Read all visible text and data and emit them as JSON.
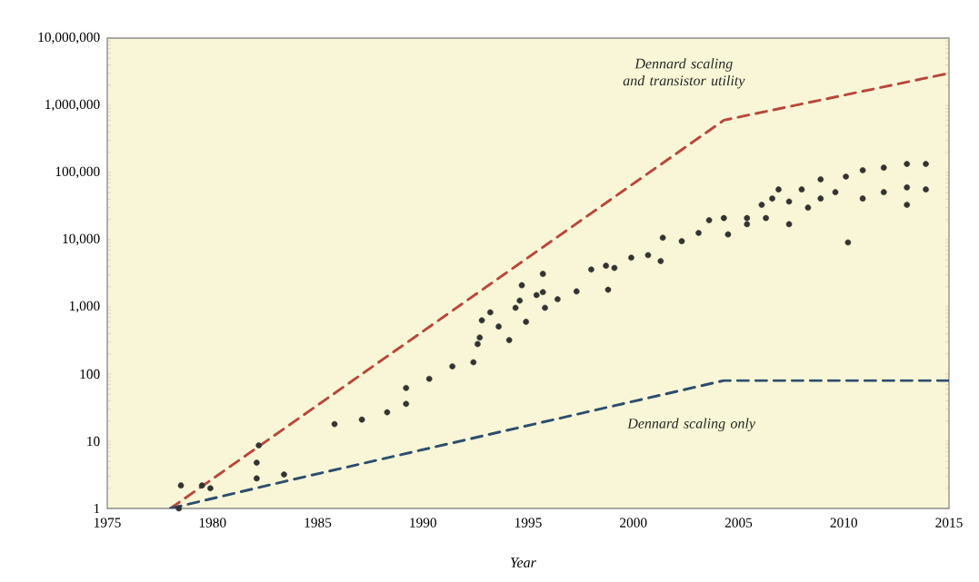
{
  "chart_data": {
    "type": "scatter",
    "xlabel": "Year",
    "log": "y",
    "xlim": [
      1975,
      2015
    ],
    "xticks": [
      1975,
      1980,
      1985,
      1990,
      1995,
      2000,
      2005,
      2010,
      2015
    ],
    "ylim": [
      1,
      10000000
    ],
    "yticks": [
      1,
      10,
      100,
      {
        "value": 1000,
        "label": "1,000"
      },
      {
        "value": 10000,
        "label": "10,000"
      },
      {
        "value": 100000,
        "label": "100,000"
      },
      {
        "value": 1000000,
        "label": "1,000,000"
      },
      {
        "value": 10000000,
        "label": "10,000,000"
      }
    ],
    "series": [
      {
        "type": "line",
        "name": "Dennard scaling and transistor utility",
        "color": "#b9473a",
        "line_style": "dashed",
        "marker": "none",
        "x": [
          1978,
          2004.3,
          2015
        ],
        "values": [
          1,
          600000,
          3000000
        ]
      },
      {
        "type": "line",
        "name": "Dennard scaling only",
        "color": "#2c4d6e",
        "line_style": "dashed",
        "marker": "none",
        "x": [
          1978,
          1983.6,
          2004.3,
          2015
        ],
        "values": [
          1,
          2.6,
          80,
          80
        ]
      },
      {
        "color": "#333333",
        "marker": "circle",
        "x": [
          1978.4,
          1978.5,
          1979.5,
          1979.9,
          1982.2,
          1982.1,
          1982.1,
          1983.4,
          1985.8,
          1987.1,
          1988.3,
          1989.2,
          1989.2,
          1990.3,
          1991.4,
          1992.4,
          1992.7,
          1992.8,
          1992.6,
          1993.2,
          1993.6,
          1994.1,
          1994.4,
          1994.7,
          1994.9,
          1995.4,
          1995.8,
          1994.6,
          1995.7,
          1995.7,
          1996.4,
          1997.3,
          1998.8,
          1998.0,
          1998.7,
          1999.1,
          1999.9,
          2000.7,
          2001.3,
          2001.4,
          2002.3,
          2003.1,
          2003.6,
          2004.3,
          2004.5,
          2005.4,
          2005.4,
          2006.1,
          2006.3,
          2006.6,
          2006.9,
          2007.4,
          2007.4,
          2008.0,
          2008.3,
          2008.9,
          2008.9,
          2009.6,
          2010.1,
          2010.2,
          2010.9,
          2010.9,
          2011.9,
          2011.9,
          2013.0,
          2013.0,
          2013.0,
          2013.9,
          2013.9
        ],
        "values": [
          1,
          2.2,
          2.2,
          2,
          8.7,
          4.8,
          2.8,
          3.2,
          18,
          21,
          27,
          36,
          62,
          85,
          130,
          150,
          350,
          630,
          280,
          830,
          510,
          320,
          970,
          2100,
          600,
          1500,
          970,
          1240,
          3100,
          1660,
          1300,
          1700,
          1800,
          3600,
          4100,
          3800,
          5400,
          5900,
          4800,
          10700,
          9500,
          12600,
          19500,
          21000,
          12000,
          21000,
          17000,
          33000,
          21000,
          41000,
          56000,
          17000,
          37000,
          56000,
          30000,
          79000,
          41000,
          51000,
          87000,
          9100,
          108000,
          41000,
          118000,
          51000,
          134000,
          60000,
          33000,
          134000,
          56000
        ]
      }
    ]
  }
}
